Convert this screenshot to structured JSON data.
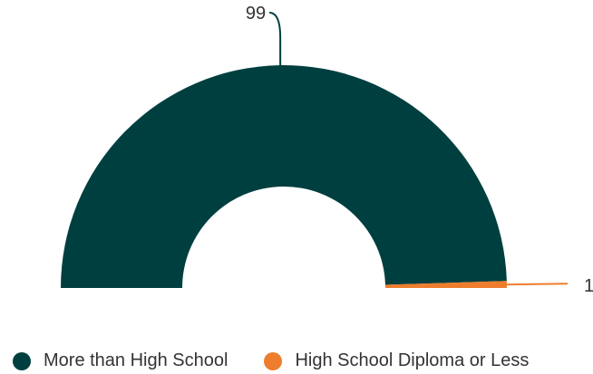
{
  "chart_data": {
    "type": "pie",
    "variant": "semi-donut",
    "categories": [
      "More than High School",
      "High School Diploma or Less"
    ],
    "values": [
      99,
      1
    ],
    "data_labels": [
      "99",
      "1"
    ],
    "colors": [
      "#003f3f",
      "#ee7d2d"
    ],
    "title": "",
    "legend_position": "bottom-left"
  }
}
